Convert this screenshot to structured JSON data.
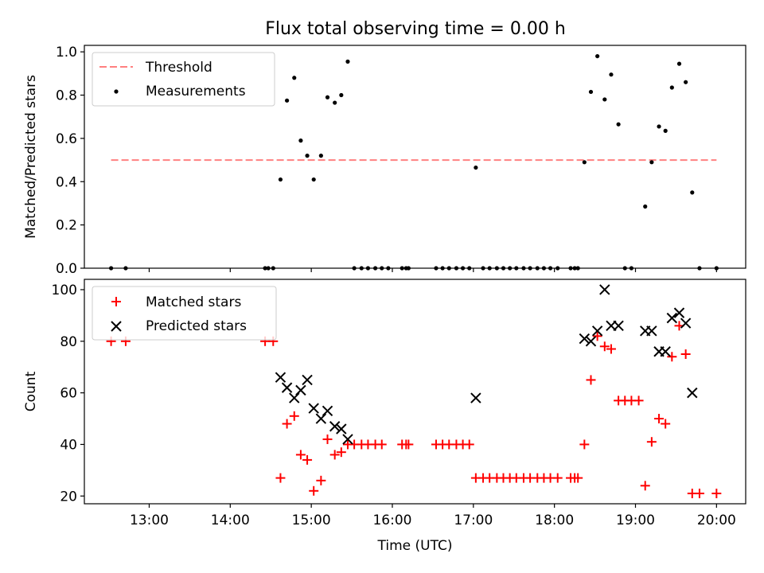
{
  "title": "Flux total observing time = 0.00 h",
  "chart_data": [
    {
      "type": "scatter",
      "ylabel": "Matched/Predicted stars",
      "xlim": [
        12.2,
        20.36
      ],
      "ylim": [
        0,
        1.03
      ],
      "yticks": [
        0.0,
        0.2,
        0.4,
        0.6,
        0.8,
        1.0
      ],
      "ytick_labels": [
        "0.0",
        "0.2",
        "0.4",
        "0.6",
        "0.8",
        "1.0"
      ],
      "legend": {
        "placement": "upper-left",
        "entries": [
          {
            "label": "Threshold",
            "color": "#ff8080",
            "marker": "dashed-line"
          },
          {
            "label": "Measurements",
            "color": "#000000",
            "marker": "dot"
          }
        ]
      },
      "threshold": {
        "value": 0.5,
        "x": [
          12.53,
          20.0
        ],
        "color": "#ff8080"
      },
      "series": [
        {
          "name": "Measurements",
          "color": "#000000",
          "x": [
            12.53,
            12.71,
            14.43,
            14.47,
            14.53,
            14.62,
            14.7,
            14.79,
            14.87,
            14.95,
            15.03,
            15.12,
            15.2,
            15.29,
            15.37,
            15.45,
            15.53,
            15.62,
            15.7,
            15.79,
            15.87,
            15.95,
            16.12,
            16.17,
            16.2,
            16.54,
            16.62,
            16.7,
            16.79,
            16.87,
            16.95,
            17.03,
            17.12,
            17.2,
            17.29,
            17.37,
            17.45,
            17.53,
            17.62,
            17.7,
            17.79,
            17.87,
            17.95,
            18.04,
            18.2,
            18.25,
            18.29,
            18.37,
            18.45,
            18.53,
            18.62,
            18.7,
            18.79,
            18.87,
            18.95,
            19.12,
            19.2,
            19.29,
            19.37,
            19.45,
            19.54,
            19.62,
            19.7,
            19.79,
            20.0
          ],
          "y": [
            0,
            0,
            0,
            0,
            0,
            0.41,
            0.775,
            0.88,
            0.59,
            0.52,
            0.41,
            0.52,
            0.79,
            0.765,
            0.8,
            0.955,
            0,
            0,
            0,
            0,
            0,
            0,
            0,
            0,
            0,
            0,
            0,
            0,
            0,
            0,
            0,
            0.465,
            0,
            0,
            0,
            0,
            0,
            0,
            0,
            0,
            0,
            0,
            0,
            0,
            0,
            0,
            0,
            0.49,
            0.815,
            0.98,
            0.78,
            0.895,
            0.665,
            0,
            0,
            0.285,
            0.49,
            0.655,
            0.635,
            0.835,
            0.945,
            0.86,
            0.35,
            0,
            0
          ]
        }
      ]
    },
    {
      "type": "scatter",
      "xlabel": "Time (UTC)",
      "ylabel": "Count",
      "xlim": [
        12.2,
        20.36
      ],
      "ylim": [
        17,
        104
      ],
      "yticks": [
        20,
        40,
        60,
        80,
        100
      ],
      "ytick_labels": [
        "20",
        "40",
        "60",
        "80",
        "100"
      ],
      "xticks": [
        13,
        14,
        15,
        16,
        17,
        18,
        19,
        20
      ],
      "xtick_labels": [
        "13:00",
        "14:00",
        "15:00",
        "16:00",
        "17:00",
        "18:00",
        "19:00",
        "20:00"
      ],
      "legend": {
        "placement": "upper-left",
        "entries": [
          {
            "label": "Matched stars",
            "color": "#ff0000",
            "marker": "plus"
          },
          {
            "label": "Predicted stars",
            "color": "#000000",
            "marker": "cross"
          }
        ]
      },
      "series": [
        {
          "name": "Matched stars",
          "color": "#ff0000",
          "marker": "plus",
          "x": [
            12.53,
            12.71,
            14.43,
            14.53,
            14.62,
            14.7,
            14.79,
            14.87,
            14.95,
            15.03,
            15.12,
            15.2,
            15.29,
            15.37,
            15.45,
            15.53,
            15.62,
            15.7,
            15.79,
            15.87,
            16.12,
            16.17,
            16.2,
            16.54,
            16.62,
            16.7,
            16.79,
            16.87,
            16.95,
            17.03,
            17.12,
            17.2,
            17.29,
            17.37,
            17.45,
            17.53,
            17.62,
            17.7,
            17.79,
            17.87,
            17.95,
            18.04,
            18.2,
            18.25,
            18.29,
            18.37,
            18.45,
            18.53,
            18.62,
            18.7,
            18.79,
            18.87,
            18.95,
            19.04,
            19.12,
            19.2,
            19.29,
            19.37,
            19.45,
            19.54,
            19.62,
            19.7,
            19.79,
            20.0
          ],
          "y": [
            80,
            80,
            80,
            80,
            27,
            48,
            51,
            36,
            34,
            22,
            26,
            42,
            36,
            37,
            40,
            40,
            40,
            40,
            40,
            40,
            40,
            40,
            40,
            40,
            40,
            40,
            40,
            40,
            40,
            27,
            27,
            27,
            27,
            27,
            27,
            27,
            27,
            27,
            27,
            27,
            27,
            27,
            27,
            27,
            27,
            40,
            65,
            82,
            78,
            77,
            57,
            57,
            57,
            57,
            24,
            41,
            50,
            48,
            74,
            86,
            75,
            21,
            21,
            21
          ]
        },
        {
          "name": "Predicted stars",
          "color": "#000000",
          "marker": "cross",
          "x": [
            14.62,
            14.7,
            14.79,
            14.87,
            14.95,
            15.03,
            15.12,
            15.2,
            15.29,
            15.37,
            15.45,
            17.03,
            18.37,
            18.45,
            18.53,
            18.62,
            18.7,
            18.79,
            19.12,
            19.2,
            19.29,
            19.37,
            19.45,
            19.54,
            19.62,
            19.7
          ],
          "y": [
            66,
            62,
            58,
            61,
            65,
            54,
            50,
            53,
            47,
            46,
            42,
            58,
            81,
            80,
            84,
            100,
            86,
            86,
            84,
            84,
            76,
            76,
            89,
            91,
            87,
            60
          ]
        }
      ]
    }
  ]
}
